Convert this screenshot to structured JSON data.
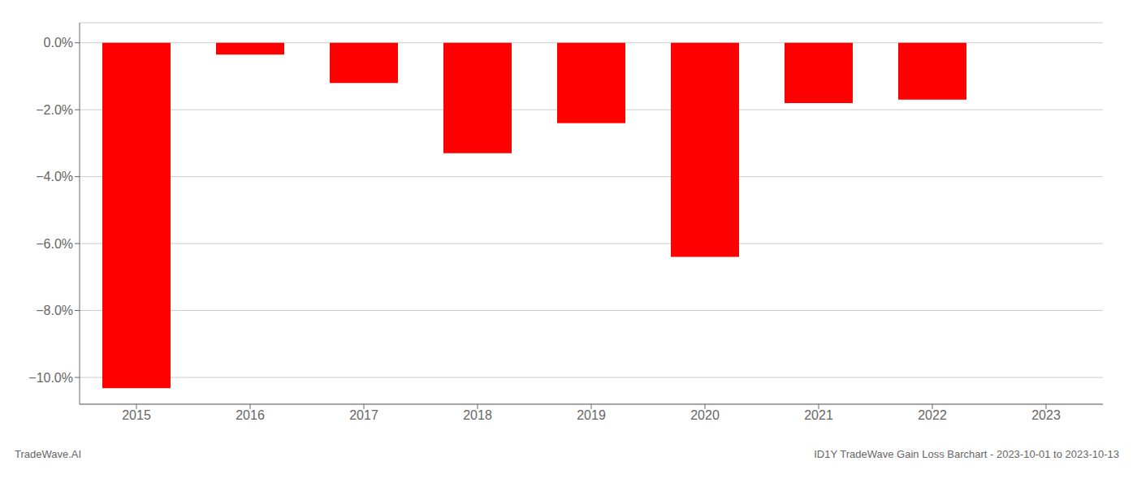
{
  "chart_data": {
    "type": "bar",
    "categories": [
      "2015",
      "2016",
      "2017",
      "2018",
      "2019",
      "2020",
      "2021",
      "2022",
      "2023"
    ],
    "values": [
      -10.32,
      -0.35,
      -1.2,
      -3.3,
      -2.4,
      -6.4,
      -1.8,
      -1.7,
      null
    ],
    "color": "#ff0000",
    "ylim": [
      -10.8,
      0.6
    ],
    "yticks": [
      {
        "value": 0.0,
        "label": "0.0%"
      },
      {
        "value": -2.0,
        "label": "−2.0%"
      },
      {
        "value": -4.0,
        "label": "−4.0%"
      },
      {
        "value": -6.0,
        "label": "−6.0%"
      },
      {
        "value": -8.0,
        "label": "−8.0%"
      },
      {
        "value": -10.0,
        "label": "−10.0%"
      }
    ],
    "grid": true,
    "annotations": [
      "TradeWave.AI",
      "ID1Y TradeWave Gain Loss Barchart - 2023-10-01 to 2023-10-13"
    ]
  }
}
